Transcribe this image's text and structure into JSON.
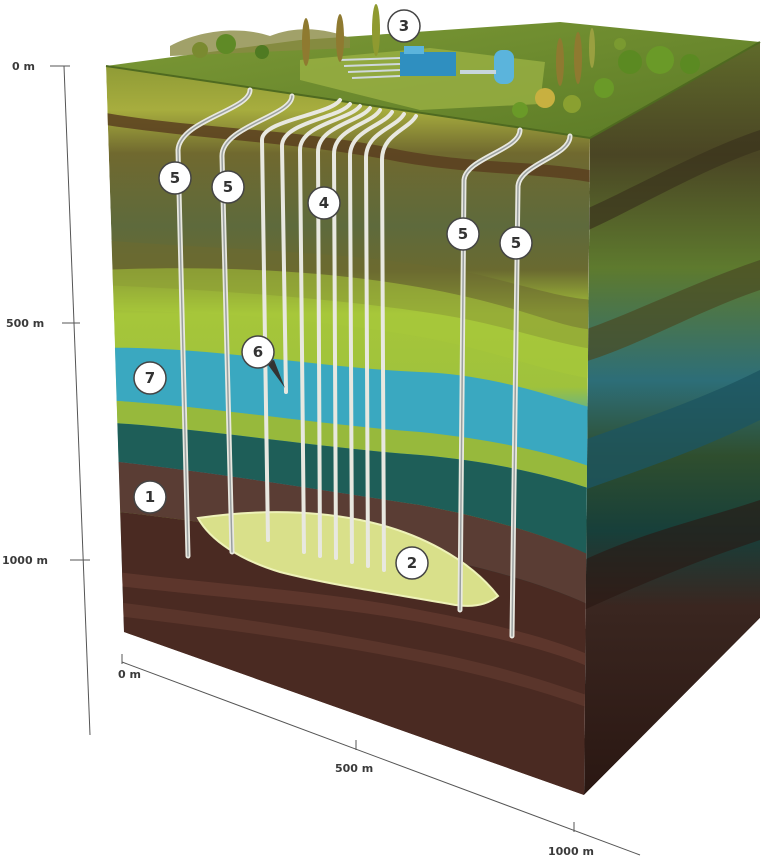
{
  "axes": {
    "depth_ticks": [
      "0 m",
      "500 m",
      "1000 m"
    ],
    "width_ticks": [
      "0 m",
      "500 m",
      "1000 m"
    ]
  },
  "markers": {
    "m1": "1",
    "m2": "2",
    "m3": "3",
    "m4": "4",
    "m5a": "5",
    "m5b": "5",
    "m5c": "5",
    "m5d": "5",
    "m6": "6",
    "m7": "7"
  },
  "colors": {
    "surface_grass": "#6f8f2e",
    "top_soil": "#9aa23a",
    "olive_layer": "#7d7a35",
    "lime_layer": "#a9c83a",
    "aquifer_blue": "#3aa8c0",
    "dark_teal": "#1e5e58",
    "deep_rock": "#4a2a22",
    "reservoir": "#d9e08a",
    "well_pipe": "#e8e8e0"
  }
}
